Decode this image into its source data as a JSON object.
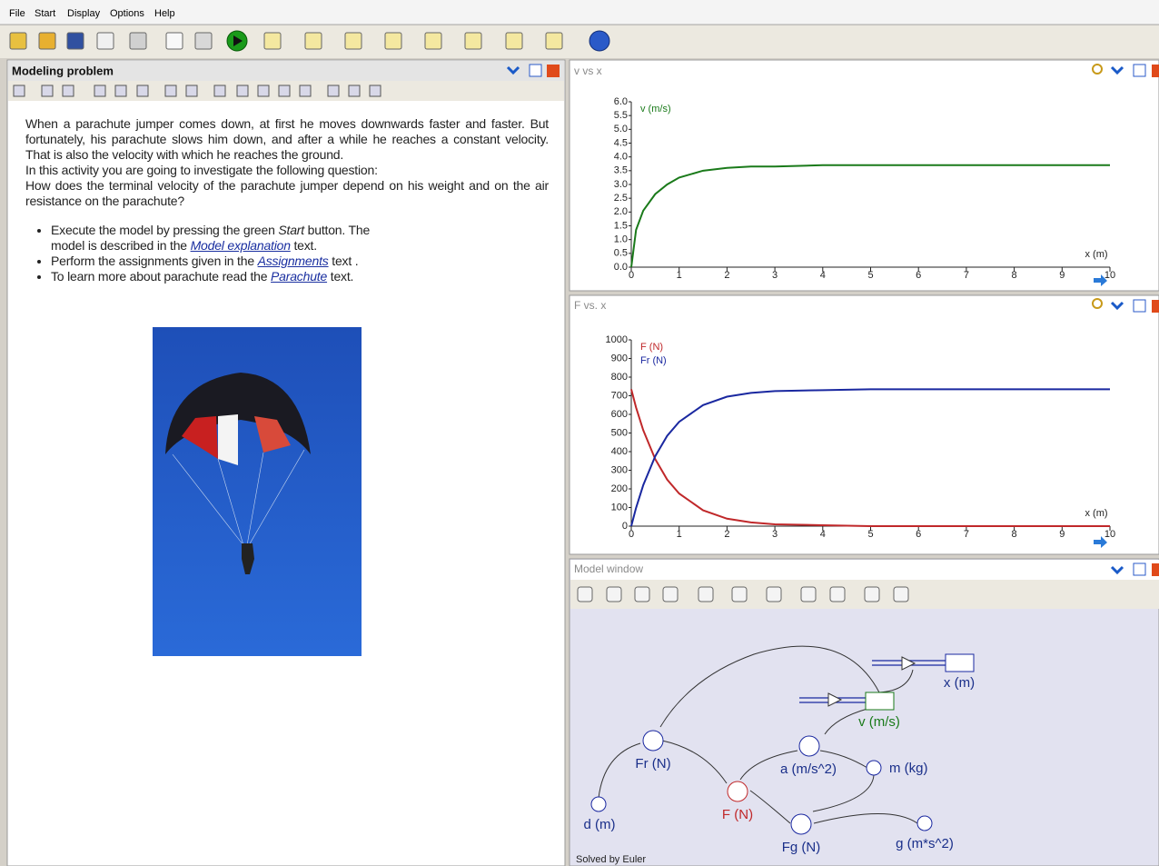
{
  "menu": [
    "File",
    "Start",
    "Display",
    "Options",
    "Help"
  ],
  "modeling_problem": {
    "title": "Modeling problem",
    "paragraphs": [
      "When a parachute jumper comes down, at first he moves downwards faster and faster. But fortunately, his parachute slows him down, and after a while he reaches a constant velocity. That is also the velocity with which he reaches the ground.",
      "In this activity you are going to investigate the following question:",
      "How does the terminal velocity of the parachute jumper depend on his weight and on the air resistance on the parachute?"
    ],
    "bullets": [
      [
        "Execute the model by pressing the green ",
        "Start",
        " button. The model is described in the ",
        "Model explanation",
        " text."
      ],
      [
        "Perform the assignments given in the ",
        "Assignments",
        " text ."
      ],
      [
        "To learn more about parachute read the ",
        "Parachute",
        " text."
      ]
    ]
  },
  "chart_data": [
    {
      "type": "line",
      "title": "v vs x",
      "xlabel": "x (m)",
      "x": [
        0,
        0.1,
        0.25,
        0.5,
        0.75,
        1,
        1.5,
        2,
        2.5,
        3,
        4,
        5,
        6,
        7,
        8,
        9,
        10
      ],
      "series": [
        {
          "name": "v (m/s)",
          "color": "#1a7a1a",
          "values": [
            0,
            1.35,
            2.05,
            2.65,
            3.0,
            3.25,
            3.5,
            3.6,
            3.65,
            3.65,
            3.7,
            3.7,
            3.7,
            3.7,
            3.7,
            3.7,
            3.7
          ]
        }
      ],
      "xlim": [
        0,
        10
      ],
      "ylim": [
        0,
        6
      ],
      "xticks": [
        0,
        1,
        2,
        3,
        4,
        5,
        6,
        7,
        8,
        9,
        10
      ],
      "yticks": [
        {
          "value": 0,
          "label": "0.0"
        },
        0.5,
        {
          "value": 1,
          "label": "1.0"
        },
        1.5,
        {
          "value": 2,
          "label": "2.0"
        },
        2.5,
        {
          "value": 3,
          "label": "3.0"
        },
        3.5,
        {
          "value": 4,
          "label": "4.0"
        },
        4.5,
        {
          "value": 5,
          "label": "5.0"
        },
        5.5,
        {
          "value": 6,
          "label": "6.0"
        }
      ]
    },
    {
      "type": "line",
      "title": "F vs. x",
      "xlabel": "x (m)",
      "x": [
        0,
        0.1,
        0.25,
        0.5,
        0.75,
        1,
        1.5,
        2,
        2.5,
        3,
        4,
        5,
        6,
        7,
        8,
        9,
        10
      ],
      "series": [
        {
          "name": "F (N)",
          "color": "#c0282a",
          "values": [
            735,
            637,
            515,
            360,
            250,
            175,
            85,
            40,
            20,
            10,
            5,
            0,
            0,
            0,
            0,
            0,
            0
          ]
        },
        {
          "name": "Fr (N)",
          "color": "#1a28a0",
          "values": [
            0,
            98,
            220,
            375,
            485,
            560,
            650,
            695,
            715,
            725,
            730,
            735,
            735,
            735,
            735,
            735,
            735
          ]
        }
      ],
      "xlim": [
        0,
        10
      ],
      "ylim": [
        0,
        1000
      ],
      "xticks": [
        0,
        1,
        2,
        3,
        4,
        5,
        6,
        7,
        8,
        9,
        10
      ],
      "yticks": [
        0,
        100,
        200,
        300,
        400,
        500,
        600,
        700,
        800,
        900,
        1000
      ]
    }
  ],
  "model_window": {
    "title": "Model window",
    "nodes": [
      {
        "label": "x (m)"
      },
      {
        "label": "v (m/s)"
      },
      {
        "label": "Fr (N)"
      },
      {
        "label": "a (m/s^2)"
      },
      {
        "label": "m (kg)"
      },
      {
        "label": "F (N)"
      },
      {
        "label": "d (m)"
      },
      {
        "label": "Fg (N)"
      },
      {
        "label": "g (m*s^2)"
      }
    ],
    "status": "Solved by Euler"
  }
}
